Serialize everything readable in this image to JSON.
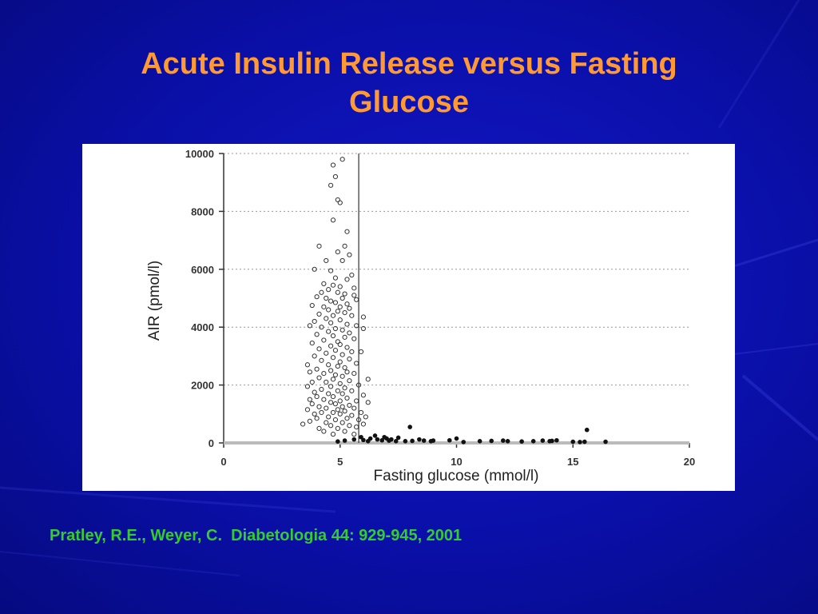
{
  "slide": {
    "title_line1": "Acute Insulin Release versus Fasting",
    "title_line2": "Glucose",
    "citation": "Pratley, R.E., Weyer, C.  Diabetologia 44: 929-945, 2001",
    "background_color": "#0a0fa8",
    "title_color": "#ff9933",
    "citation_color": "#33cc33"
  },
  "chart_data": {
    "type": "scatter",
    "title": "",
    "xlabel": "Fasting glucose (mmol/l)",
    "ylabel": "AIR (pmol/l)",
    "xlim": [
      0,
      20
    ],
    "ylim": [
      0,
      10000
    ],
    "x_ticks": [
      0,
      5,
      10,
      15,
      20
    ],
    "y_ticks": [
      0,
      2000,
      4000,
      6000,
      8000,
      10000
    ],
    "x_tick_labels": [
      "0",
      "5",
      "10",
      "15",
      "20"
    ],
    "y_tick_labels": [
      "0",
      "2000",
      "4000",
      "6000",
      "8000",
      "10000"
    ],
    "grid": "horizontal dashed",
    "reference_line_x": 5.8,
    "series": [
      {
        "marker": "open-circle",
        "points": [
          [
            5.1,
            9800
          ],
          [
            4.7,
            9600
          ],
          [
            4.8,
            9200
          ],
          [
            4.6,
            8900
          ],
          [
            4.9,
            8400
          ],
          [
            5.0,
            8300
          ],
          [
            4.7,
            7700
          ],
          [
            5.3,
            7300
          ],
          [
            4.1,
            6800
          ],
          [
            5.2,
            6800
          ],
          [
            4.9,
            6600
          ],
          [
            5.4,
            6500
          ],
          [
            4.4,
            6300
          ],
          [
            5.1,
            6300
          ],
          [
            3.9,
            6000
          ],
          [
            4.6,
            5950
          ],
          [
            5.5,
            5800
          ],
          [
            4.8,
            5700
          ],
          [
            5.3,
            5650
          ],
          [
            4.3,
            5500
          ],
          [
            4.7,
            5450
          ],
          [
            5.0,
            5400
          ],
          [
            5.6,
            5350
          ],
          [
            4.5,
            5300
          ],
          [
            4.2,
            5200
          ],
          [
            4.9,
            5200
          ],
          [
            5.2,
            5150
          ],
          [
            5.6,
            5100
          ],
          [
            4.0,
            5050
          ],
          [
            4.4,
            5000
          ],
          [
            5.1,
            5000
          ],
          [
            5.7,
            4950
          ],
          [
            4.6,
            4900
          ],
          [
            4.8,
            4850
          ],
          [
            5.3,
            4800
          ],
          [
            3.8,
            4750
          ],
          [
            4.3,
            4700
          ],
          [
            5.0,
            4700
          ],
          [
            5.4,
            4650
          ],
          [
            4.5,
            4600
          ],
          [
            4.9,
            4550
          ],
          [
            5.2,
            4500
          ],
          [
            4.1,
            4450
          ],
          [
            4.7,
            4400
          ],
          [
            5.5,
            4400
          ],
          [
            6.0,
            4350
          ],
          [
            4.4,
            4300
          ],
          [
            5.0,
            4250
          ],
          [
            3.9,
            4200
          ],
          [
            4.6,
            4150
          ],
          [
            5.3,
            4100
          ],
          [
            5.7,
            4050
          ],
          [
            3.7,
            4050
          ],
          [
            4.2,
            4000
          ],
          [
            4.8,
            3950
          ],
          [
            5.1,
            3900
          ],
          [
            6.0,
            3950
          ],
          [
            4.5,
            3850
          ],
          [
            5.4,
            3800
          ],
          [
            4.0,
            3750
          ],
          [
            4.7,
            3700
          ],
          [
            5.2,
            3650
          ],
          [
            5.6,
            3600
          ],
          [
            4.3,
            3550
          ],
          [
            4.9,
            3500
          ],
          [
            3.8,
            3450
          ],
          [
            5.0,
            3400
          ],
          [
            4.6,
            3350
          ],
          [
            5.3,
            3300
          ],
          [
            4.1,
            3250
          ],
          [
            4.8,
            3200
          ],
          [
            5.5,
            3150
          ],
          [
            5.9,
            3150
          ],
          [
            4.4,
            3100
          ],
          [
            5.1,
            3050
          ],
          [
            3.9,
            3000
          ],
          [
            4.7,
            2950
          ],
          [
            5.4,
            2900
          ],
          [
            4.2,
            2850
          ],
          [
            5.0,
            2800
          ],
          [
            5.7,
            2750
          ],
          [
            3.6,
            2700
          ],
          [
            4.5,
            2700
          ],
          [
            4.9,
            2650
          ],
          [
            5.2,
            2600
          ],
          [
            4.0,
            2550
          ],
          [
            4.6,
            2500
          ],
          [
            5.3,
            2450
          ],
          [
            3.7,
            2450
          ],
          [
            4.3,
            2400
          ],
          [
            5.6,
            2400
          ],
          [
            4.8,
            2350
          ],
          [
            5.1,
            2300
          ],
          [
            6.2,
            2200
          ],
          [
            4.1,
            2250
          ],
          [
            4.7,
            2200
          ],
          [
            5.4,
            2150
          ],
          [
            3.8,
            2100
          ],
          [
            4.4,
            2100
          ],
          [
            5.0,
            2050
          ],
          [
            5.8,
            2000
          ],
          [
            3.6,
            1950
          ],
          [
            4.6,
            1950
          ],
          [
            5.2,
            1900
          ],
          [
            4.2,
            1850
          ],
          [
            4.9,
            1800
          ],
          [
            5.5,
            1800
          ],
          [
            3.9,
            1750
          ],
          [
            4.5,
            1700
          ],
          [
            5.1,
            1700
          ],
          [
            6.0,
            1650
          ],
          [
            4.0,
            1600
          ],
          [
            4.7,
            1600
          ],
          [
            5.3,
            1550
          ],
          [
            3.7,
            1500
          ],
          [
            4.3,
            1500
          ],
          [
            5.0,
            1450
          ],
          [
            5.7,
            1450
          ],
          [
            4.6,
            1400
          ],
          [
            6.2,
            1400
          ],
          [
            3.8,
            1350
          ],
          [
            4.8,
            1350
          ],
          [
            5.4,
            1300
          ],
          [
            4.1,
            1250
          ],
          [
            5.1,
            1250
          ],
          [
            4.4,
            1200
          ],
          [
            5.6,
            1200
          ],
          [
            3.6,
            1150
          ],
          [
            4.9,
            1150
          ],
          [
            5.2,
            1100
          ],
          [
            4.2,
            1050
          ],
          [
            4.7,
            1050
          ],
          [
            5.9,
            1050
          ],
          [
            3.9,
            1000
          ],
          [
            5.0,
            1000
          ],
          [
            5.5,
            950
          ],
          [
            4.5,
            900
          ],
          [
            6.1,
            900
          ],
          [
            4.0,
            850
          ],
          [
            5.3,
            850
          ],
          [
            4.8,
            800
          ],
          [
            5.8,
            800
          ],
          [
            3.7,
            750
          ],
          [
            4.4,
            700
          ],
          [
            5.1,
            700
          ],
          [
            6.0,
            650
          ],
          [
            4.6,
            600
          ],
          [
            5.4,
            600
          ],
          [
            3.4,
            650
          ],
          [
            4.1,
            500
          ],
          [
            4.9,
            500
          ],
          [
            5.7,
            550
          ],
          [
            4.3,
            400
          ],
          [
            5.2,
            400
          ],
          [
            4.7,
            300
          ],
          [
            5.6,
            300
          ]
        ]
      },
      {
        "marker": "filled-circle",
        "points": [
          [
            4.9,
            50
          ],
          [
            5.2,
            80
          ],
          [
            5.6,
            120
          ],
          [
            5.9,
            200
          ],
          [
            6.0,
            100
          ],
          [
            6.2,
            60
          ],
          [
            6.3,
            150
          ],
          [
            6.5,
            250
          ],
          [
            6.6,
            120
          ],
          [
            6.8,
            90
          ],
          [
            6.9,
            200
          ],
          [
            7.0,
            150
          ],
          [
            7.1,
            80
          ],
          [
            7.2,
            120
          ],
          [
            7.4,
            60
          ],
          [
            7.5,
            180
          ],
          [
            7.8,
            60
          ],
          [
            8.0,
            550
          ],
          [
            8.1,
            70
          ],
          [
            8.4,
            120
          ],
          [
            8.6,
            80
          ],
          [
            8.9,
            60
          ],
          [
            9.0,
            80
          ],
          [
            9.7,
            90
          ],
          [
            10.0,
            150
          ],
          [
            10.3,
            30
          ],
          [
            11.0,
            60
          ],
          [
            11.5,
            70
          ],
          [
            12.0,
            80
          ],
          [
            12.2,
            60
          ],
          [
            12.8,
            50
          ],
          [
            13.3,
            60
          ],
          [
            13.7,
            80
          ],
          [
            14.0,
            60
          ],
          [
            14.1,
            70
          ],
          [
            14.3,
            90
          ],
          [
            15.0,
            40
          ],
          [
            15.3,
            30
          ],
          [
            15.5,
            40
          ],
          [
            15.6,
            450
          ],
          [
            16.4,
            40
          ]
        ]
      }
    ]
  }
}
